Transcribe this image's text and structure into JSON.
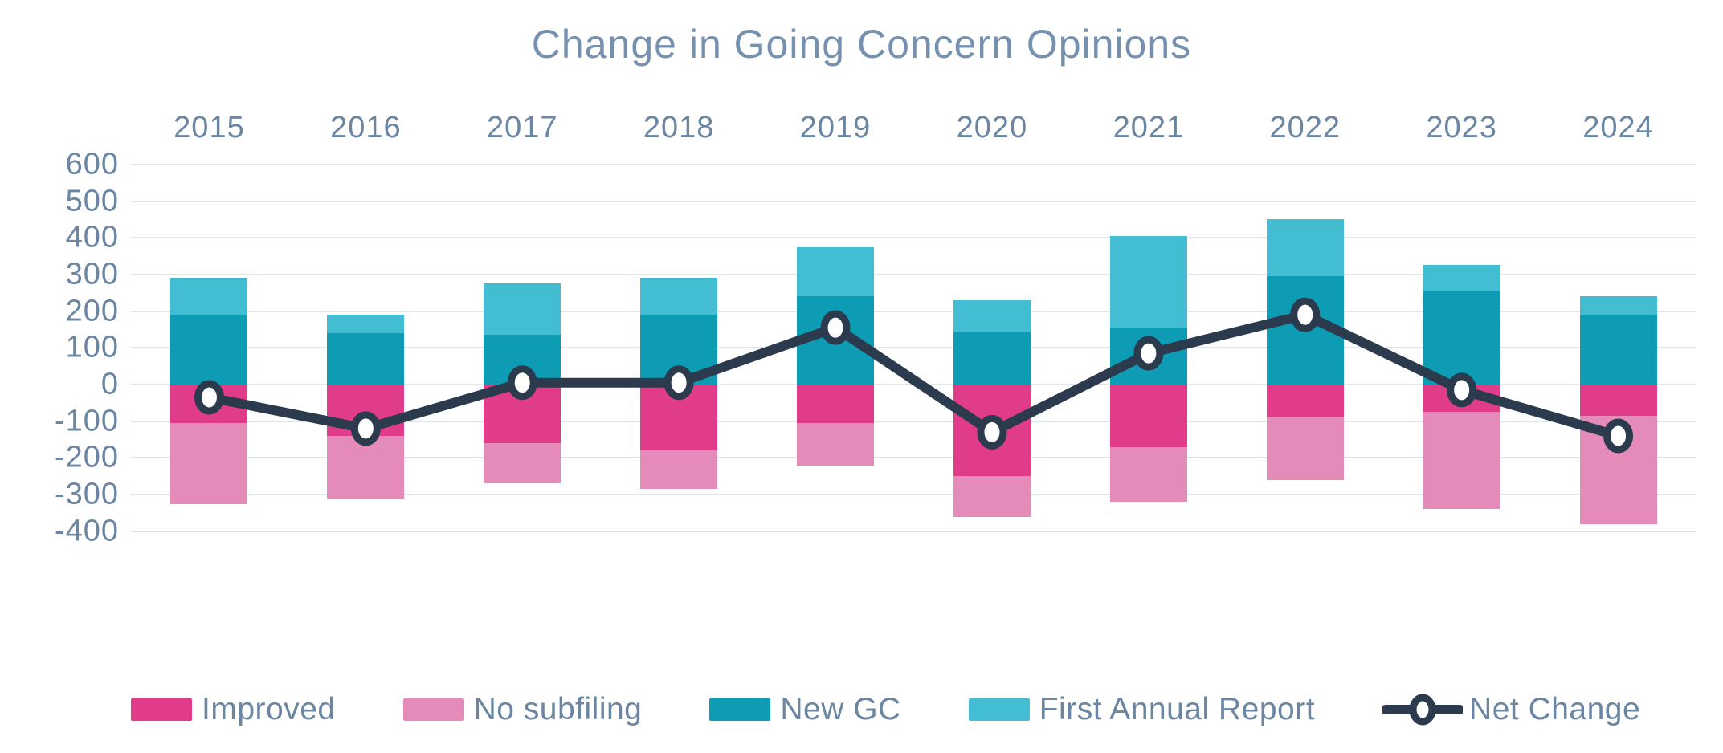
{
  "page": {
    "background_color": "#FFFFFF"
  },
  "chart_data": {
    "type": "bar",
    "subtype": "stacked-bar-with-line",
    "title": "Change in Going Concern Opinions",
    "categories": [
      "2015",
      "2016",
      "2017",
      "2018",
      "2019",
      "2020",
      "2021",
      "2022",
      "2023",
      "2024"
    ],
    "series": [
      {
        "name": "Improved",
        "role": "bar-negative",
        "color": "#E03C8A",
        "values": [
          -105,
          -140,
          -160,
          -180,
          -105,
          -250,
          -170,
          -90,
          -75,
          -85
        ]
      },
      {
        "name": "No subfiling",
        "role": "bar-negative",
        "color": "#E58BB9",
        "values": [
          -220,
          -170,
          -110,
          -105,
          -115,
          -110,
          -150,
          -170,
          -265,
          -295
        ]
      },
      {
        "name": "New GC",
        "role": "bar-positive",
        "color": "#0D9CB4",
        "values": [
          190,
          140,
          135,
          190,
          240,
          145,
          155,
          295,
          255,
          190
        ]
      },
      {
        "name": "First Annual Report",
        "role": "bar-positive",
        "color": "#43BDD1",
        "values": [
          100,
          50,
          140,
          100,
          135,
          85,
          250,
          155,
          70,
          50
        ]
      }
    ],
    "line_series": {
      "name": "Net Change",
      "color": "#2B3A4D",
      "marker_fill": "#FFFFFF",
      "values": [
        -35,
        -120,
        5,
        5,
        155,
        -130,
        85,
        190,
        -15,
        -140
      ]
    },
    "y_axis": {
      "min": -400,
      "max": 600,
      "step": 100,
      "tick_labels": [
        "600",
        "500",
        "400",
        "300",
        "200",
        "100",
        "0",
        "-100",
        "-200",
        "-300",
        "-400"
      ]
    },
    "x_axis_position": "top",
    "grid": true,
    "legend_position": "bottom",
    "legend": [
      {
        "label": "Improved",
        "marker": "swatch",
        "color": "#E03C8A"
      },
      {
        "label": "No subfiling",
        "marker": "swatch",
        "color": "#E58BB9"
      },
      {
        "label": "New GC",
        "marker": "swatch",
        "color": "#0D9CB4"
      },
      {
        "label": "First Annual Report",
        "marker": "swatch",
        "color": "#43BDD1"
      },
      {
        "label": "Net Change",
        "marker": "line-dot",
        "color": "#2B3A4D"
      }
    ],
    "colors": {
      "text": "#6A86A3",
      "title_text": "#7691AF",
      "gridline": "#E0E5EA"
    }
  }
}
